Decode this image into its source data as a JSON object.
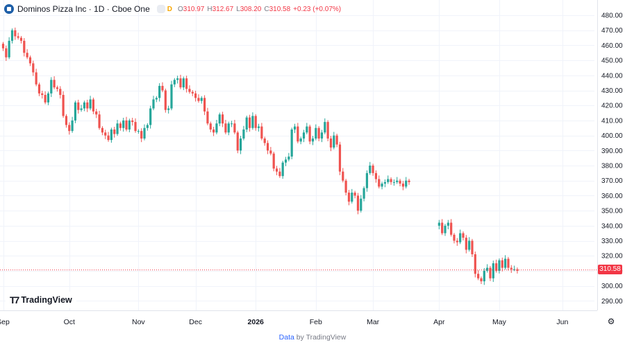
{
  "header": {
    "title": "Dominos Pizza Inc · 1D · Cboe One",
    "interval_tag": "D",
    "ohlc": [
      {
        "label": "O",
        "value": "310.97"
      },
      {
        "label": "H",
        "value": "312.67"
      },
      {
        "label": "L",
        "value": "308.20"
      },
      {
        "label": "C",
        "value": "310.58"
      }
    ],
    "change": "+0.23 (+0.07%)"
  },
  "last_price_label": "310.58",
  "branding": {
    "logo_text": "TradingView"
  },
  "footer": {
    "data_word": "Data",
    "by_text": "by TradingView"
  },
  "colors": {
    "up": "#26a69a",
    "down": "#ef5350",
    "grid": "#f0f3fa",
    "axis_text": "#131722",
    "price_line": "#f23645"
  },
  "icons": {
    "symbol": "symbol-logo-icon",
    "settings": "gear-icon"
  },
  "chart_data": {
    "type": "candlestick",
    "y_ticks": [
      480,
      470,
      460,
      450,
      440,
      430,
      420,
      410,
      400,
      390,
      380,
      370,
      360,
      350,
      340,
      330,
      320,
      310,
      300,
      290
    ],
    "ylim": [
      284,
      484
    ],
    "x_labels": [
      {
        "label": "Sep",
        "x": 0
      },
      {
        "label": "Oct",
        "x": 22
      },
      {
        "label": "Nov",
        "x": 45
      },
      {
        "label": "Dec",
        "x": 64
      },
      {
        "label": "2026",
        "x": 84
      },
      {
        "label": "Feb",
        "x": 104
      },
      {
        "label": "Mar",
        "x": 123
      },
      {
        "label": "Apr",
        "x": 145
      },
      {
        "label": "May",
        "x": 165
      },
      {
        "label": "Jun",
        "x": 186
      }
    ],
    "xlim": [
      -2,
      196
    ],
    "last_price": 310.58,
    "candles": [
      [
        461,
        458
      ],
      [
        458,
        452
      ],
      [
        452,
        463
      ],
      [
        463,
        470
      ],
      [
        470,
        466
      ],
      [
        466,
        465
      ],
      [
        465,
        463
      ],
      [
        463,
        455
      ],
      [
        455,
        452
      ],
      [
        452,
        448
      ],
      [
        448,
        442
      ],
      [
        442,
        434
      ],
      [
        434,
        428
      ],
      [
        428,
        427
      ],
      [
        427,
        422
      ],
      [
        422,
        428
      ],
      [
        428,
        437
      ],
      [
        437,
        432
      ],
      [
        432,
        431
      ],
      [
        431,
        427
      ],
      [
        427,
        413
      ],
      [
        413,
        407
      ],
      [
        407,
        403
      ],
      [
        403,
        410
      ],
      [
        410,
        422
      ],
      [
        422,
        417
      ],
      [
        417,
        418
      ],
      [
        418,
        422
      ],
      [
        422,
        418
      ],
      [
        418,
        424
      ],
      [
        424,
        416
      ],
      [
        416,
        414
      ],
      [
        414,
        405
      ],
      [
        405,
        402
      ],
      [
        402,
        400
      ],
      [
        400,
        397
      ],
      [
        397,
        404
      ],
      [
        404,
        401
      ],
      [
        401,
        408
      ],
      [
        408,
        405
      ],
      [
        405,
        410
      ],
      [
        410,
        404
      ],
      [
        404,
        410
      ],
      [
        410,
        409
      ],
      [
        409,
        403
      ],
      [
        403,
        403
      ],
      [
        403,
        398
      ],
      [
        398,
        405
      ],
      [
        405,
        407
      ],
      [
        407,
        418
      ],
      [
        418,
        424
      ],
      [
        424,
        425
      ],
      [
        425,
        433
      ],
      [
        433,
        430
      ],
      [
        430,
        417
      ],
      [
        417,
        418
      ],
      [
        418,
        434
      ],
      [
        434,
        437
      ],
      [
        437,
        438
      ],
      [
        438,
        432
      ],
      [
        432,
        438
      ],
      [
        438,
        431
      ],
      [
        431,
        429
      ],
      [
        429,
        428
      ],
      [
        428,
        425
      ],
      [
        425,
        423
      ],
      [
        423,
        425
      ],
      [
        425,
        416
      ],
      [
        416,
        408
      ],
      [
        408,
        404
      ],
      [
        404,
        402
      ],
      [
        402,
        408
      ],
      [
        408,
        414
      ],
      [
        414,
        408
      ],
      [
        408,
        402
      ],
      [
        402,
        408
      ],
      [
        408,
        408
      ],
      [
        408,
        402
      ],
      [
        402,
        390
      ],
      [
        390,
        398
      ],
      [
        398,
        404
      ],
      [
        404,
        412
      ],
      [
        412,
        405
      ],
      [
        405,
        413
      ],
      [
        413,
        405
      ],
      [
        405,
        406
      ],
      [
        406,
        398
      ],
      [
        398,
        395
      ],
      [
        395,
        390
      ],
      [
        390,
        388
      ],
      [
        388,
        378
      ],
      [
        378,
        376
      ],
      [
        376,
        373
      ],
      [
        373,
        382
      ],
      [
        382,
        384
      ],
      [
        384,
        386
      ],
      [
        386,
        404
      ],
      [
        404,
        406
      ],
      [
        406,
        396
      ],
      [
        396,
        398
      ],
      [
        398,
        402
      ],
      [
        402,
        406
      ],
      [
        406,
        396
      ],
      [
        396,
        398
      ],
      [
        398,
        405
      ],
      [
        405,
        398
      ],
      [
        398,
        402
      ],
      [
        402,
        409
      ],
      [
        409,
        398
      ],
      [
        398,
        392
      ],
      [
        392,
        400
      ],
      [
        400,
        394
      ],
      [
        394,
        376
      ],
      [
        376,
        370
      ],
      [
        370,
        362
      ],
      [
        362,
        356
      ],
      [
        356,
        362
      ],
      [
        362,
        360
      ],
      [
        360,
        350
      ],
      [
        350,
        358
      ],
      [
        358,
        365
      ],
      [
        365,
        375
      ],
      [
        375,
        380
      ],
      [
        380,
        375
      ],
      [
        375,
        371
      ],
      [
        371,
        366
      ],
      [
        366,
        368
      ],
      [
        368,
        369
      ],
      [
        369,
        371
      ],
      [
        371,
        369
      ],
      [
        369,
        369
      ],
      [
        369,
        370
      ],
      [
        370,
        368
      ],
      [
        368,
        366
      ],
      [
        366,
        370
      ],
      [
        370,
        369
      ],
      null,
      null,
      null,
      null,
      null,
      null,
      null,
      null,
      null,
      [
        340,
        342
      ],
      [
        342,
        335
      ],
      [
        335,
        340
      ],
      [
        340,
        342
      ],
      [
        342,
        334
      ],
      [
        334,
        330
      ],
      [
        330,
        329
      ],
      [
        329,
        335
      ],
      [
        335,
        332
      ],
      [
        332,
        324
      ],
      [
        324,
        330
      ],
      [
        330,
        321
      ],
      [
        321,
        308
      ],
      [
        308,
        305
      ],
      [
        305,
        303
      ],
      [
        303,
        310
      ],
      [
        310,
        312
      ],
      [
        312,
        305
      ],
      [
        305,
        315
      ],
      [
        315,
        310
      ],
      [
        310,
        317
      ],
      [
        317,
        312
      ],
      [
        312,
        318
      ],
      [
        318,
        312
      ],
      [
        312,
        311
      ],
      [
        311,
        311
      ],
      [
        311,
        310
      ]
    ]
  }
}
